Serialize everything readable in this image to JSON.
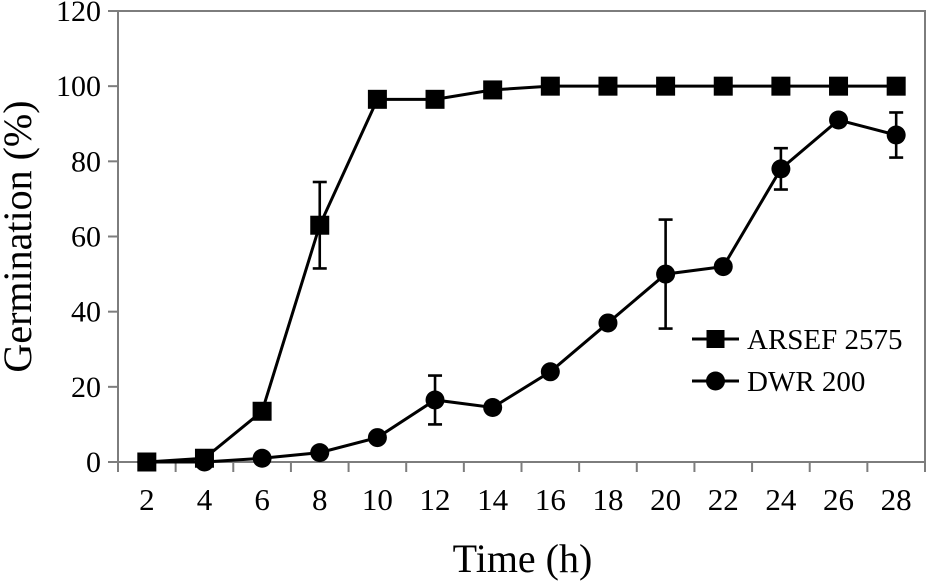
{
  "figure": {
    "background": "#ffffff",
    "frame_color": "#7d7d7d",
    "data_color": "#000000",
    "text_color": "#000000"
  },
  "chart_data": {
    "type": "line",
    "title": "",
    "xlabel": "Time (h)",
    "ylabel": "Germination (%)",
    "x": [
      2,
      4,
      6,
      8,
      10,
      12,
      14,
      16,
      18,
      20,
      22,
      24,
      26,
      28
    ],
    "xtick_labels": [
      "2",
      "4",
      "6",
      "8",
      "10",
      "12",
      "14",
      "16",
      "18",
      "20",
      "22",
      "24",
      "26",
      "28"
    ],
    "ytick_values": [
      0,
      20,
      40,
      60,
      80,
      100,
      120
    ],
    "ytick_labels": [
      "0",
      "20",
      "40",
      "60",
      "80",
      "100",
      "120"
    ],
    "ylim": [
      0,
      120
    ],
    "grid": false,
    "frame": "full-box",
    "x_axis_style": "category-with-boundary-ticks",
    "legend_position": "inside-lower-right",
    "series": [
      {
        "name": "ARSEF 2575",
        "marker": "square",
        "color": "#000000",
        "values": [
          0,
          1,
          13.5,
          63,
          96.5,
          96.5,
          99,
          100,
          100,
          100,
          100,
          100,
          100,
          100
        ],
        "error": [
          0,
          0,
          0,
          11.5,
          0,
          0,
          0,
          0,
          0,
          0,
          0,
          0,
          0,
          0
        ]
      },
      {
        "name": "DWR 200",
        "marker": "circle",
        "color": "#000000",
        "values": [
          0,
          0,
          1,
          2.5,
          6.5,
          16.5,
          14.5,
          24,
          37,
          50,
          52,
          78,
          91,
          87
        ],
        "error": [
          0,
          0,
          0,
          0,
          0,
          6.5,
          0,
          0,
          0,
          14.5,
          0,
          5.5,
          0,
          6
        ]
      }
    ]
  }
}
